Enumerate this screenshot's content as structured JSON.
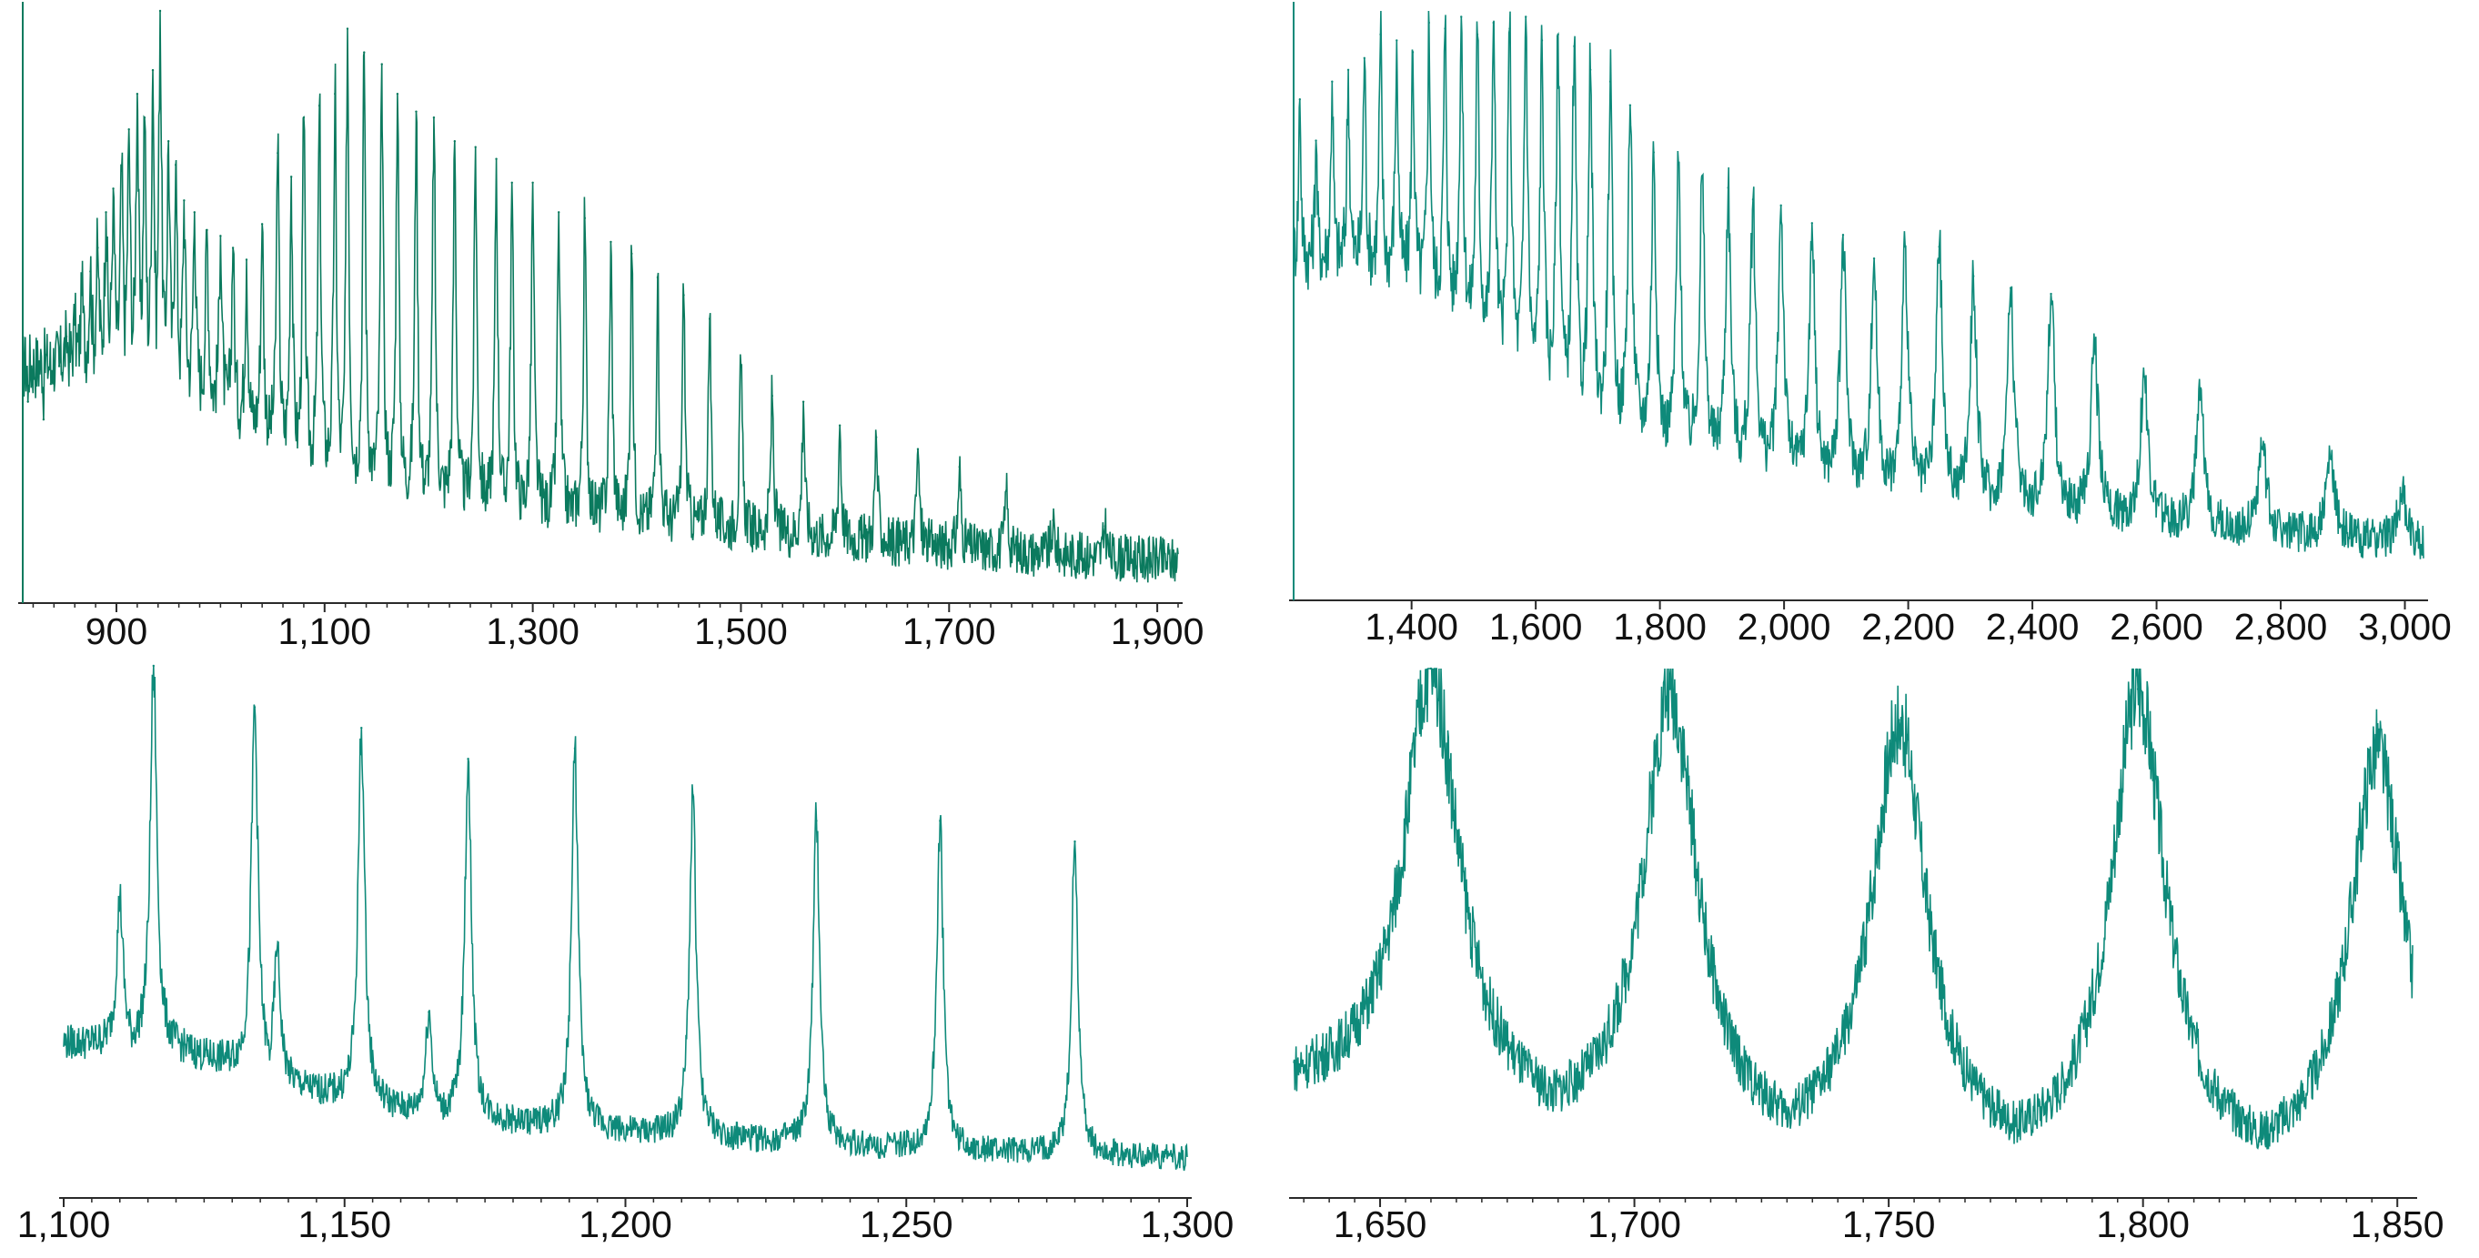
{
  "colors": {
    "trace": "#0e8a7a",
    "trace_dark": "#0b7a5e",
    "axis": "#2a2a2a",
    "label": "#111111"
  },
  "chart_data": [
    {
      "type": "line",
      "panel": "top-left",
      "xlim": [
        810,
        1920
      ],
      "tick_labels": [
        "900",
        "1,100",
        "1,300",
        "1,500",
        "1,700",
        "1,900"
      ],
      "tick_values": [
        900,
        1100,
        1300,
        1500,
        1700,
        1900
      ],
      "series": [
        {
          "peaks": [
            {
              "x": 815,
              "y": 0.34
            },
            {
              "x": 822,
              "y": 0.38
            },
            {
              "x": 830,
              "y": 0.31
            },
            {
              "x": 837,
              "y": 0.37
            },
            {
              "x": 845,
              "y": 0.4
            },
            {
              "x": 852,
              "y": 0.45
            },
            {
              "x": 860,
              "y": 0.47
            },
            {
              "x": 867,
              "y": 0.52
            },
            {
              "x": 875,
              "y": 0.56
            },
            {
              "x": 882,
              "y": 0.6
            },
            {
              "x": 890,
              "y": 0.66
            },
            {
              "x": 897,
              "y": 0.7
            },
            {
              "x": 905,
              "y": 0.73
            },
            {
              "x": 912,
              "y": 0.8
            },
            {
              "x": 920,
              "y": 0.86
            },
            {
              "x": 927,
              "y": 0.82
            },
            {
              "x": 935,
              "y": 0.9
            },
            {
              "x": 942,
              "y": 1.0
            },
            {
              "x": 950,
              "y": 0.78
            },
            {
              "x": 957,
              "y": 0.74
            },
            {
              "x": 965,
              "y": 0.68
            },
            {
              "x": 975,
              "y": 0.66
            },
            {
              "x": 987,
              "y": 0.63
            },
            {
              "x": 1000,
              "y": 0.62
            },
            {
              "x": 1012,
              "y": 0.6
            },
            {
              "x": 1025,
              "y": 0.58
            },
            {
              "x": 1040,
              "y": 0.64
            },
            {
              "x": 1055,
              "y": 0.76
            },
            {
              "x": 1068,
              "y": 0.72
            },
            {
              "x": 1080,
              "y": 0.82
            },
            {
              "x": 1095,
              "y": 0.84
            },
            {
              "x": 1110,
              "y": 0.86
            },
            {
              "x": 1122,
              "y": 0.97
            },
            {
              "x": 1138,
              "y": 0.93
            },
            {
              "x": 1155,
              "y": 0.91
            },
            {
              "x": 1170,
              "y": 0.86
            },
            {
              "x": 1188,
              "y": 0.83
            },
            {
              "x": 1205,
              "y": 0.82
            },
            {
              "x": 1225,
              "y": 0.78
            },
            {
              "x": 1245,
              "y": 0.77
            },
            {
              "x": 1265,
              "y": 0.75
            },
            {
              "x": 1280,
              "y": 0.71
            },
            {
              "x": 1300,
              "y": 0.71
            },
            {
              "x": 1325,
              "y": 0.66
            },
            {
              "x": 1350,
              "y": 0.65
            },
            {
              "x": 1375,
              "y": 0.61
            },
            {
              "x": 1395,
              "y": 0.59
            },
            {
              "x": 1420,
              "y": 0.55
            },
            {
              "x": 1445,
              "y": 0.52
            },
            {
              "x": 1470,
              "y": 0.48
            },
            {
              "x": 1500,
              "y": 0.4
            },
            {
              "x": 1530,
              "y": 0.35
            },
            {
              "x": 1560,
              "y": 0.34
            },
            {
              "x": 1595,
              "y": 0.3
            },
            {
              "x": 1630,
              "y": 0.28
            },
            {
              "x": 1670,
              "y": 0.26
            },
            {
              "x": 1710,
              "y": 0.23
            },
            {
              "x": 1755,
              "y": 0.19
            },
            {
              "x": 1800,
              "y": 0.14
            },
            {
              "x": 1850,
              "y": 0.13
            }
          ]
        }
      ]
    },
    {
      "type": "line",
      "panel": "top-right",
      "xlim": [
        1210,
        3030
      ],
      "tick_labels": [
        "1,400",
        "1,600",
        "1,800",
        "2,000",
        "2,200",
        "2,400",
        "2,600",
        "2,800",
        "3,000"
      ],
      "tick_values": [
        1400,
        1600,
        1800,
        2000,
        2200,
        2400,
        2600,
        2800,
        3000
      ],
      "series": [
        {
          "peaks": [
            {
              "x": 1220,
              "y": 0.85
            },
            {
              "x": 1246,
              "y": 0.78
            },
            {
              "x": 1272,
              "y": 0.88
            },
            {
              "x": 1298,
              "y": 0.9
            },
            {
              "x": 1324,
              "y": 0.92
            },
            {
              "x": 1350,
              "y": 0.96
            },
            {
              "x": 1376,
              "y": 0.95
            },
            {
              "x": 1402,
              "y": 0.93
            },
            {
              "x": 1428,
              "y": 0.98
            },
            {
              "x": 1454,
              "y": 0.97
            },
            {
              "x": 1480,
              "y": 0.99
            },
            {
              "x": 1506,
              "y": 0.96
            },
            {
              "x": 1532,
              "y": 0.98
            },
            {
              "x": 1558,
              "y": 0.97
            },
            {
              "x": 1584,
              "y": 0.99
            },
            {
              "x": 1610,
              "y": 0.95
            },
            {
              "x": 1636,
              "y": 0.96
            },
            {
              "x": 1662,
              "y": 0.94
            },
            {
              "x": 1688,
              "y": 0.9
            },
            {
              "x": 1720,
              "y": 0.88
            },
            {
              "x": 1752,
              "y": 0.84
            },
            {
              "x": 1790,
              "y": 0.76
            },
            {
              "x": 1830,
              "y": 0.74
            },
            {
              "x": 1868,
              "y": 0.72
            },
            {
              "x": 1910,
              "y": 0.7
            },
            {
              "x": 1950,
              "y": 0.68
            },
            {
              "x": 1995,
              "y": 0.67
            },
            {
              "x": 2045,
              "y": 0.64
            },
            {
              "x": 2095,
              "y": 0.62
            },
            {
              "x": 2145,
              "y": 0.58
            },
            {
              "x": 2195,
              "y": 0.6
            },
            {
              "x": 2250,
              "y": 0.6
            },
            {
              "x": 2305,
              "y": 0.55
            },
            {
              "x": 2365,
              "y": 0.53
            },
            {
              "x": 2430,
              "y": 0.52
            },
            {
              "x": 2500,
              "y": 0.44
            },
            {
              "x": 2580,
              "y": 0.38
            },
            {
              "x": 2670,
              "y": 0.34
            },
            {
              "x": 2770,
              "y": 0.26
            },
            {
              "x": 2880,
              "y": 0.24
            },
            {
              "x": 2995,
              "y": 0.18
            }
          ]
        }
      ]
    },
    {
      "type": "line",
      "panel": "bottom-left",
      "xlim": [
        1100,
        1300
      ],
      "tick_labels": [
        "1,100",
        "1,150",
        "1,200",
        "1,250",
        "1,300"
      ],
      "tick_values": [
        1100,
        1150,
        1200,
        1250,
        1300
      ],
      "series": [
        {
          "peaks": [
            {
              "x": 1110,
              "y": 0.55
            },
            {
              "x": 1116,
              "y": 1.0
            },
            {
              "x": 1134,
              "y": 0.92
            },
            {
              "x": 1138,
              "y": 0.45
            },
            {
              "x": 1153,
              "y": 0.88
            },
            {
              "x": 1165,
              "y": 0.33
            },
            {
              "x": 1172,
              "y": 0.82
            },
            {
              "x": 1191,
              "y": 0.84
            },
            {
              "x": 1212,
              "y": 0.75
            },
            {
              "x": 1234,
              "y": 0.7
            },
            {
              "x": 1256,
              "y": 0.7
            },
            {
              "x": 1280,
              "y": 0.66
            }
          ]
        }
      ]
    },
    {
      "type": "line",
      "panel": "bottom-right",
      "xlim": [
        1633,
        1853
      ],
      "tick_labels": [
        "1,650",
        "1,700",
        "1,750",
        "1,800",
        "1,850"
      ],
      "tick_values": [
        1650,
        1700,
        1750,
        1800,
        1850
      ],
      "series": [
        {
          "peaks": [
            {
              "x": 1660,
              "y": 1.0
            },
            {
              "x": 1707,
              "y": 0.96
            },
            {
              "x": 1752,
              "y": 0.9
            },
            {
              "x": 1799,
              "y": 0.96
            },
            {
              "x": 1846,
              "y": 0.84
            }
          ]
        }
      ]
    }
  ]
}
